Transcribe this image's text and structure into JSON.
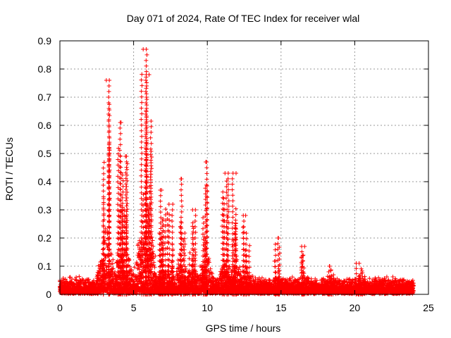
{
  "chart_data": {
    "type": "scatter",
    "title": "Day 071 of 2024, Rate Of TEC Index for receiver wlal",
    "xlabel": "GPS time / hours",
    "ylabel": "ROTI / TECUs",
    "xlim": [
      0,
      25
    ],
    "ylim": [
      0,
      0.9
    ],
    "x_ticks": [
      "0",
      "5",
      "10",
      "15",
      "20",
      "25"
    ],
    "y_ticks": [
      "0",
      "0.1",
      "0.2",
      "0.3",
      "0.4",
      "0.5",
      "0.6",
      "0.7",
      "0.8",
      "0.9"
    ],
    "grid": true,
    "marker": "+",
    "series_color": "#ff0000",
    "x_data_range": [
      0,
      24
    ],
    "baseline_level": 0.03,
    "peaks": [
      {
        "x": 3.15,
        "y": 0.76
      },
      {
        "x": 4.15,
        "y": 0.61
      },
      {
        "x": 4.45,
        "y": 0.49
      },
      {
        "x": 5.65,
        "y": 0.87
      },
      {
        "x": 6.05,
        "y": 0.78
      },
      {
        "x": 6.9,
        "y": 0.37
      },
      {
        "x": 7.4,
        "y": 0.32
      },
      {
        "x": 8.25,
        "y": 0.41
      },
      {
        "x": 9.0,
        "y": 0.3
      },
      {
        "x": 9.9,
        "y": 0.47
      },
      {
        "x": 11.2,
        "y": 0.43
      },
      {
        "x": 11.95,
        "y": 0.43
      },
      {
        "x": 12.6,
        "y": 0.28
      },
      {
        "x": 14.8,
        "y": 0.2
      },
      {
        "x": 16.6,
        "y": 0.17
      },
      {
        "x": 18.3,
        "y": 0.1
      },
      {
        "x": 20.3,
        "y": 0.11
      }
    ]
  }
}
